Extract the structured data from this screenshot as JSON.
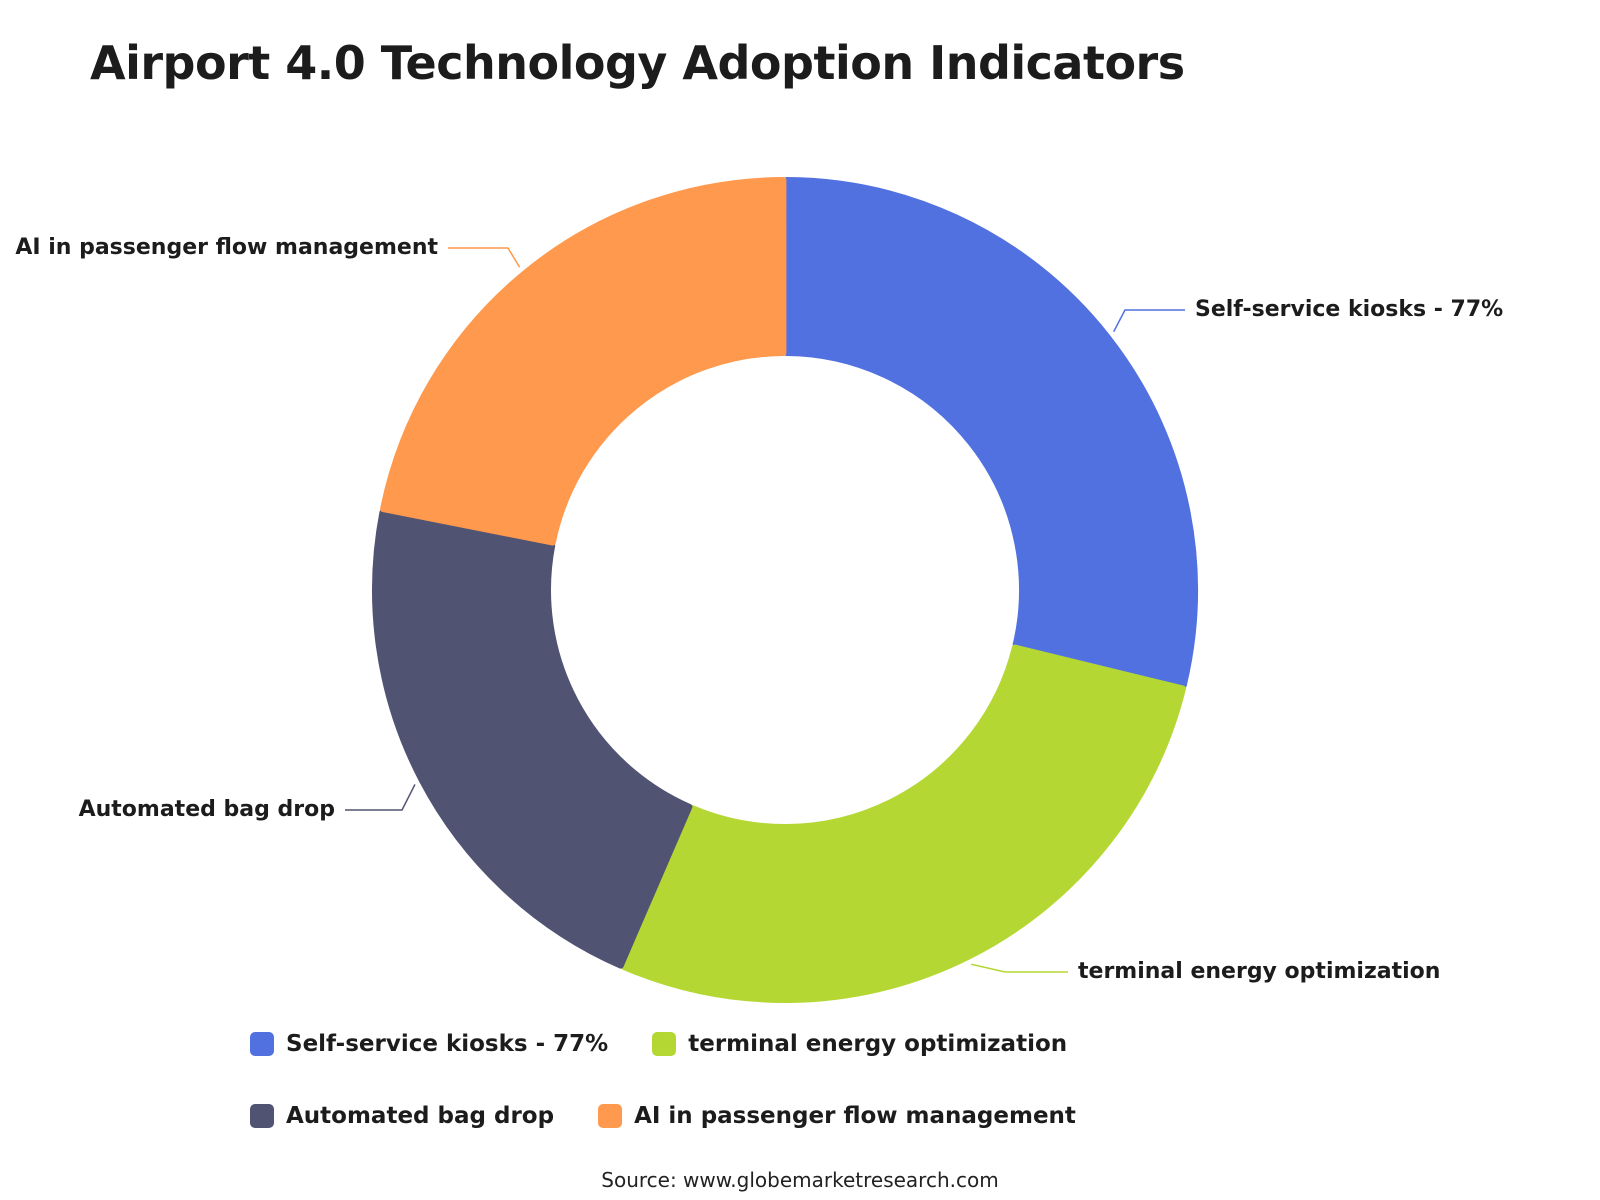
{
  "chart_data": {
    "type": "pie",
    "title": "Airport 4.0 Technology Adoption Indicators",
    "donut": true,
    "labels": [
      "Self-service kiosks - 77%",
      "terminal energy optimization",
      "Automated bag drop",
      "AI in passenger flow management"
    ],
    "values": [
      28.8,
      27.7,
      21.6,
      21.9
    ],
    "colors": [
      "#5171e0",
      "#b5d734",
      "#515372",
      "#ff994d"
    ],
    "legend_position": "bottom",
    "source": "Source: www.globemarketresearch.com"
  }
}
